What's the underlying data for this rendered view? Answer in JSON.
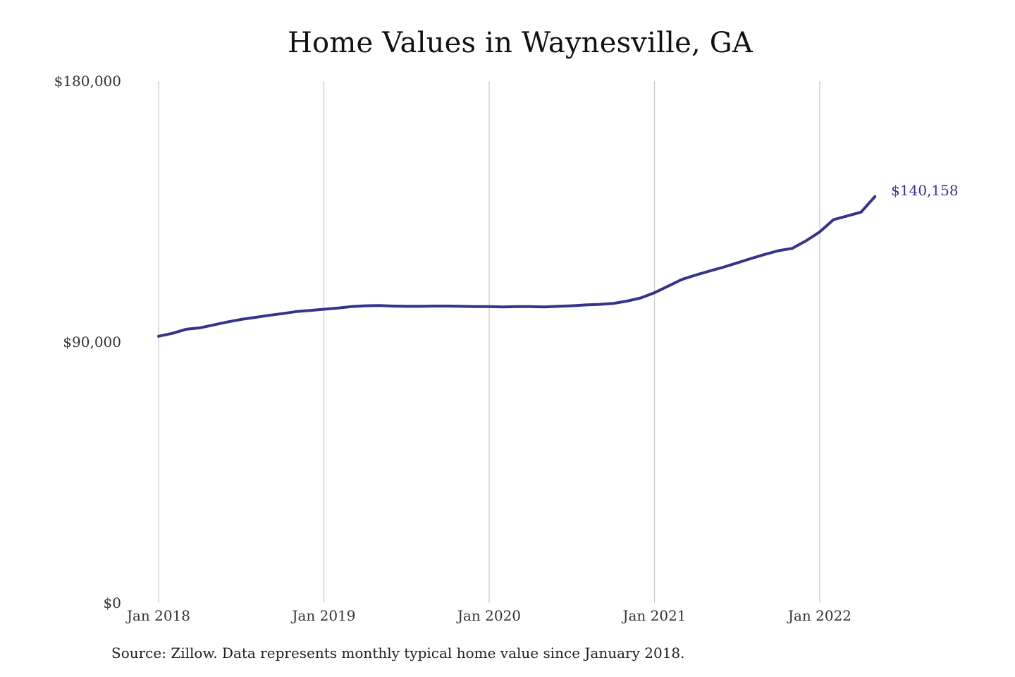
{
  "title": "Home Values in Waynesville, GA",
  "source_note": "Source: Zillow. Data represents monthly typical home value since January 2018.",
  "colors": {
    "line": "#36338a",
    "grid": "#c8c8c8",
    "text": "#333333"
  },
  "chart_data": {
    "type": "line",
    "title": "Home Values in Waynesville, GA",
    "xlabel": "",
    "ylabel": "",
    "x_ticks": [
      "Jan 2018",
      "Jan 2019",
      "Jan 2020",
      "Jan 2021",
      "Jan 2022"
    ],
    "y_ticks": [
      {
        "value": 0,
        "label": "$0"
      },
      {
        "value": 90000,
        "label": "$90,000"
      },
      {
        "value": 180000,
        "label": "$180,000"
      }
    ],
    "ylim": [
      0,
      180000
    ],
    "xlim": [
      "2018-01",
      "2022-05"
    ],
    "grid": "vertical lines at each January",
    "end_label": "$140,158",
    "series": [
      {
        "x": [
          "2018-01",
          "2018-02",
          "2018-03",
          "2018-04",
          "2018-05",
          "2018-06",
          "2018-07",
          "2018-08",
          "2018-09",
          "2018-10",
          "2018-11",
          "2018-12",
          "2019-01",
          "2019-02",
          "2019-03",
          "2019-04",
          "2019-05",
          "2019-06",
          "2019-07",
          "2019-08",
          "2019-09",
          "2019-10",
          "2019-11",
          "2019-12",
          "2020-01",
          "2020-02",
          "2020-03",
          "2020-04",
          "2020-05",
          "2020-06",
          "2020-07",
          "2020-08",
          "2020-09",
          "2020-10",
          "2020-11",
          "2020-12",
          "2021-01",
          "2021-02",
          "2021-03",
          "2021-04",
          "2021-05",
          "2021-06",
          "2021-07",
          "2021-08",
          "2021-09",
          "2021-10",
          "2021-11",
          "2021-12",
          "2022-01",
          "2022-02",
          "2022-03",
          "2022-04",
          "2022-05"
        ],
        "values": [
          92000,
          93000,
          94400,
          94900,
          95900,
          96900,
          97800,
          98500,
          99200,
          99800,
          100500,
          100900,
          101300,
          101700,
          102200,
          102500,
          102600,
          102400,
          102300,
          102300,
          102400,
          102400,
          102300,
          102200,
          102200,
          102100,
          102200,
          102200,
          102100,
          102300,
          102500,
          102800,
          103000,
          103300,
          104100,
          105200,
          107000,
          109300,
          111600,
          113100,
          114500,
          115800,
          117300,
          118800,
          120200,
          121500,
          122300,
          124900,
          128000,
          132200,
          133500,
          134800,
          140158
        ]
      }
    ]
  }
}
